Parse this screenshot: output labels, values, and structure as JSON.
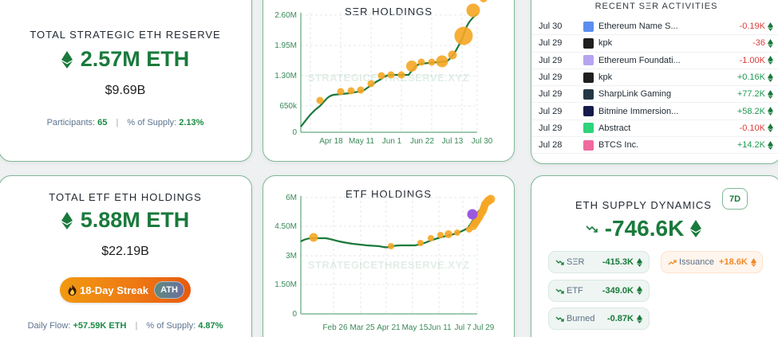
{
  "colors": {
    "accent_green": "#1a7a3c",
    "card_border": "#7fb894",
    "negative": "#dc3b3b",
    "positive": "#1e9a52",
    "dot_orange": "#f5a623",
    "highlight_purple": "#9b59e0",
    "issuance_orange": "#f08a2c"
  },
  "strategic_reserve": {
    "title": "TOTAL STRATEGIC ETH RESERVE",
    "amount": "2.57M ETH",
    "usd_value": "$9.69B",
    "participants_label": "Participants:",
    "participants_value": "65",
    "supply_label": "% of Supply:",
    "supply_value": "2.13%",
    "icon": "eth-icon"
  },
  "etf_holdings_stat": {
    "title": "TOTAL ETF ETH HOLDINGS",
    "amount": "5.88M ETH",
    "usd_value": "$22.19B",
    "streak_label": "18-Day Streak",
    "streak_icon": "fire-icon",
    "ath_badge": "ATH",
    "daily_flow_label": "Daily Flow:",
    "daily_flow_value": "+57.59K ETH",
    "supply_label": "% of Supply:",
    "supply_value": "4.87%"
  },
  "ser_chart": {
    "title": "SΞR HOLDINGS",
    "watermark": "STRATEGICETHRESERVE.XYZ",
    "y_ticks": [
      "2.60M",
      "1.95M",
      "1.30M",
      "650k",
      "0"
    ],
    "x_ticks": [
      "Apr 18",
      "May 11",
      "Jun 1",
      "Jun 22",
      "Jul 13",
      "Jul 30"
    ]
  },
  "etf_chart": {
    "title": "ETF HOLDINGS",
    "watermark": "STRATEGICETHRESERVE.XYZ",
    "y_ticks": [
      "6M",
      "4.50M",
      "3M",
      "1.50M",
      "0"
    ],
    "x_ticks": [
      "Feb 26",
      "Mar 25",
      "Apr 21",
      "May 15",
      "Jun 11",
      "Jul 7",
      "Jul 29"
    ]
  },
  "chart_data": [
    {
      "type": "line",
      "title": "SΞR HOLDINGS",
      "xlabel": "",
      "ylabel": "",
      "ylim": [
        0,
        2600000
      ],
      "grid": true,
      "x": [
        "Apr 5",
        "Apr 18",
        "Apr 30",
        "May 5",
        "May 11",
        "May 16",
        "May 24",
        "Jun 1",
        "Jun 8",
        "Jun 15",
        "Jun 22",
        "Jun 29",
        "Jul 4",
        "Jul 9",
        "Jul 13",
        "Jul 20",
        "Jul 26",
        "Jul 30"
      ],
      "x_ticks": [
        "Apr 18",
        "May 11",
        "Jun 1",
        "Jun 22",
        "Jul 13",
        "Jul 30"
      ],
      "series": [
        {
          "name": "SΞR Holdings (ETH)",
          "values": [
            100000,
            370000,
            520000,
            530000,
            545000,
            560000,
            750000,
            900000,
            910000,
            910000,
            1080000,
            1180000,
            1180000,
            1190000,
            1230000,
            1330000,
            2230000,
            2590000
          ]
        }
      ],
      "y_ticks": [
        "0",
        "650k",
        "1.30M",
        "1.95M",
        "2.60M"
      ]
    },
    {
      "type": "line",
      "title": "ETF HOLDINGS",
      "xlabel": "",
      "ylabel": "",
      "ylim": [
        0,
        6000000
      ],
      "grid": true,
      "x": [
        "Feb 1",
        "Feb 3",
        "Feb 26",
        "Mar 25",
        "Apr 21",
        "Apr 24",
        "May 15",
        "May 28",
        "Jun 5",
        "Jun 11",
        "Jun 20",
        "Jun 28",
        "Jul 7",
        "Jul 12",
        "Jul 18",
        "Jul 23",
        "Jul 29"
      ],
      "x_ticks": [
        "Feb 26",
        "Mar 25",
        "Apr 21",
        "May 15",
        "Jun 11",
        "Jul 7",
        "Jul 29"
      ],
      "series": [
        {
          "name": "ETF Holdings (ETH)",
          "values": [
            3750000,
            3820000,
            3720000,
            3550000,
            3450000,
            3520000,
            3600000,
            3800000,
            3950000,
            4050000,
            4120000,
            4250000,
            4500000,
            4800000,
            5020000,
            5500000,
            5880000
          ]
        }
      ],
      "y_ticks": [
        "0",
        "1.50M",
        "3M",
        "4.50M",
        "6M"
      ]
    }
  ],
  "activities": {
    "title": "RECENT SΞR ACTIVITIES",
    "rows": [
      {
        "date": "Jul 30",
        "name": "Ethereum Name S...",
        "amount": "-0.19K",
        "sign": "neg",
        "logo_color": "#5b8def"
      },
      {
        "date": "Jul 29",
        "name": "kpk",
        "amount": "-36",
        "sign": "neg",
        "logo_color": "#1f1f1f"
      },
      {
        "date": "Jul 29",
        "name": "Ethereum Foundati...",
        "amount": "-1.00K",
        "sign": "neg",
        "logo_color": "#b7a4f0"
      },
      {
        "date": "Jul 29",
        "name": "kpk",
        "amount": "+0.16K",
        "sign": "pos",
        "logo_color": "#1f1f1f"
      },
      {
        "date": "Jul 29",
        "name": "SharpLink Gaming",
        "amount": "+77.2K",
        "sign": "pos",
        "logo_color": "#243743"
      },
      {
        "date": "Jul 29",
        "name": "Bitmine Immersion...",
        "amount": "+58.2K",
        "sign": "pos",
        "logo_color": "#141a4a"
      },
      {
        "date": "Jul 29",
        "name": "Abstract",
        "amount": "-0.10K",
        "sign": "neg",
        "logo_color": "#2fd37a"
      },
      {
        "date": "Jul 28",
        "name": "BTCS Inc.",
        "amount": "+14.2K",
        "sign": "pos",
        "logo_color": "#f06aa0"
      }
    ]
  },
  "supply_dynamics": {
    "title": "ETH SUPPLY DYNAMICS",
    "period_button": "7D",
    "net_change": "-746.6K",
    "trend_icon": "trend-down-icon",
    "items": [
      {
        "label": "SΞR",
        "value": "-415.3K",
        "trend": "down"
      },
      {
        "label": "ETF",
        "value": "-349.0K",
        "trend": "down"
      },
      {
        "label": "Burned",
        "value": "-0.87K",
        "trend": "down"
      }
    ],
    "issuance": {
      "label": "Issuance",
      "value": "+18.6K",
      "trend": "up"
    }
  }
}
